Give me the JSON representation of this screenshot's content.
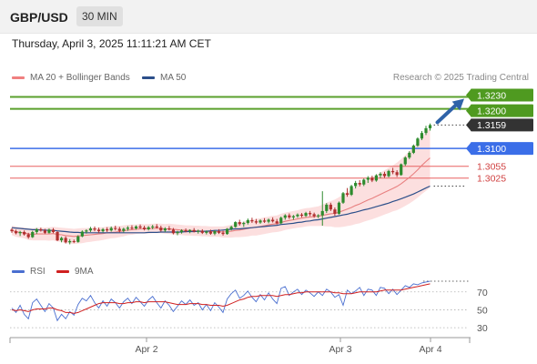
{
  "header": {
    "symbol": "GBP/USD",
    "timeframe": "30 MIN"
  },
  "datetime": "Thursday, April 3, 2025 11:11:21 AM CET",
  "legend": [
    {
      "label": "MA 20 + Bollinger Bands",
      "color": "#f08080"
    },
    {
      "label": "MA 50",
      "color": "#2c4f8a"
    }
  ],
  "research_credit": "Research © 2025 Trading Central",
  "colors": {
    "up": "#2e8b2e",
    "down": "#b03030",
    "ma50": "#2c4f8a",
    "ma20": "#e88080",
    "band": "#fcd9d9",
    "resistance": "#5aa02c",
    "support": "#3b6ee8",
    "supportRed": "#e86060",
    "arrow": "#2f63a8"
  },
  "chart_data": {
    "type": "candlestick",
    "ylim": [
      1.282,
      1.3245
    ],
    "levels": [
      {
        "value": 1.323,
        "label": "1.3230",
        "kind": "resistance"
      },
      {
        "value": 1.32,
        "label": "1.3200",
        "kind": "resistance"
      },
      {
        "value": 1.3159,
        "label": "1.3159",
        "kind": "last"
      },
      {
        "value": 1.31,
        "label": "1.3100",
        "kind": "pivot"
      },
      {
        "value": 1.3055,
        "label": "1.3055",
        "kind": "support"
      },
      {
        "value": 1.3025,
        "label": "1.3025",
        "kind": "support"
      }
    ],
    "x_labels": [
      "Apr 2",
      "Apr 3",
      "Apr 4"
    ],
    "candles": [
      [
        1.2895,
        1.2899,
        1.2887,
        1.2891
      ],
      [
        1.2891,
        1.2895,
        1.2883,
        1.2886
      ],
      [
        1.2886,
        1.2892,
        1.2879,
        1.2889
      ],
      [
        1.2889,
        1.2893,
        1.288,
        1.2883
      ],
      [
        1.2883,
        1.2887,
        1.2872,
        1.2876
      ],
      [
        1.2876,
        1.2892,
        1.2874,
        1.2889
      ],
      [
        1.2889,
        1.2899,
        1.2884,
        1.2896
      ],
      [
        1.2896,
        1.29,
        1.289,
        1.2893
      ],
      [
        1.2893,
        1.2897,
        1.2884,
        1.2887
      ],
      [
        1.2887,
        1.2898,
        1.2885,
        1.2895
      ],
      [
        1.2895,
        1.2899,
        1.2886,
        1.2889
      ],
      [
        1.2889,
        1.2891,
        1.2866,
        1.2868
      ],
      [
        1.2868,
        1.2877,
        1.2863,
        1.2874
      ],
      [
        1.2874,
        1.2878,
        1.286,
        1.2863
      ],
      [
        1.2863,
        1.2871,
        1.2858,
        1.2866
      ],
      [
        1.2866,
        1.287,
        1.2861,
        1.2864
      ],
      [
        1.2864,
        1.2881,
        1.2862,
        1.2878
      ],
      [
        1.2878,
        1.2893,
        1.2876,
        1.289
      ],
      [
        1.289,
        1.2896,
        1.2885,
        1.2893
      ],
      [
        1.2893,
        1.2902,
        1.2889,
        1.2898
      ],
      [
        1.2898,
        1.2903,
        1.2891,
        1.2895
      ],
      [
        1.2895,
        1.29,
        1.2887,
        1.2891
      ],
      [
        1.2891,
        1.2899,
        1.2888,
        1.2896
      ],
      [
        1.2896,
        1.2901,
        1.2889,
        1.2893
      ],
      [
        1.2893,
        1.2903,
        1.289,
        1.2899
      ],
      [
        1.2899,
        1.2905,
        1.2893,
        1.2897
      ],
      [
        1.2897,
        1.2902,
        1.2888,
        1.2892
      ],
      [
        1.2892,
        1.29,
        1.2888,
        1.2897
      ],
      [
        1.2897,
        1.2904,
        1.2892,
        1.29
      ],
      [
        1.29,
        1.2906,
        1.2895,
        1.2898
      ],
      [
        1.2898,
        1.2906,
        1.2895,
        1.2903
      ],
      [
        1.2903,
        1.2908,
        1.2897,
        1.29
      ],
      [
        1.29,
        1.2905,
        1.2893,
        1.2896
      ],
      [
        1.2896,
        1.2904,
        1.2893,
        1.2901
      ],
      [
        1.2901,
        1.2907,
        1.2896,
        1.2903
      ],
      [
        1.2903,
        1.2909,
        1.2898,
        1.29
      ],
      [
        1.29,
        1.2905,
        1.289,
        1.2893
      ],
      [
        1.2893,
        1.2901,
        1.2889,
        1.2898
      ],
      [
        1.2898,
        1.2904,
        1.2893,
        1.2895
      ],
      [
        1.2895,
        1.2899,
        1.2883,
        1.2886
      ],
      [
        1.2886,
        1.2892,
        1.2881,
        1.2889
      ],
      [
        1.2889,
        1.2896,
        1.2885,
        1.2893
      ],
      [
        1.2893,
        1.2898,
        1.2888,
        1.2891
      ],
      [
        1.2891,
        1.2896,
        1.2886,
        1.2894
      ],
      [
        1.2894,
        1.2899,
        1.2888,
        1.289
      ],
      [
        1.289,
        1.2895,
        1.2885,
        1.2892
      ],
      [
        1.2892,
        1.2896,
        1.2884,
        1.2887
      ],
      [
        1.2887,
        1.2893,
        1.2883,
        1.289
      ],
      [
        1.289,
        1.2895,
        1.2882,
        1.2885
      ],
      [
        1.2885,
        1.2893,
        1.2881,
        1.2891
      ],
      [
        1.2891,
        1.2896,
        1.2884,
        1.2887
      ],
      [
        1.2887,
        1.2892,
        1.288,
        1.2884
      ],
      [
        1.2884,
        1.2899,
        1.2882,
        1.2897
      ],
      [
        1.2897,
        1.2905,
        1.2893,
        1.2902
      ],
      [
        1.2902,
        1.2916,
        1.29,
        1.2914
      ],
      [
        1.2914,
        1.292,
        1.2905,
        1.2909
      ],
      [
        1.2909,
        1.2915,
        1.2902,
        1.2912
      ],
      [
        1.2912,
        1.2923,
        1.2908,
        1.2919
      ],
      [
        1.2919,
        1.2925,
        1.2912,
        1.2916
      ],
      [
        1.2916,
        1.2922,
        1.2909,
        1.2913
      ],
      [
        1.2913,
        1.2921,
        1.291,
        1.2918
      ],
      [
        1.2918,
        1.2924,
        1.2912,
        1.2915
      ],
      [
        1.2915,
        1.2923,
        1.2911,
        1.292
      ],
      [
        1.292,
        1.2926,
        1.2913,
        1.2916
      ],
      [
        1.2916,
        1.2922,
        1.2908,
        1.2911
      ],
      [
        1.2911,
        1.2928,
        1.2909,
        1.2925
      ],
      [
        1.2925,
        1.2934,
        1.292,
        1.2931
      ],
      [
        1.2931,
        1.2936,
        1.2922,
        1.2926
      ],
      [
        1.2926,
        1.2932,
        1.292,
        1.2929
      ],
      [
        1.2929,
        1.2936,
        1.2925,
        1.2933
      ],
      [
        1.2933,
        1.2937,
        1.2926,
        1.293
      ],
      [
        1.293,
        1.294,
        1.2927,
        1.2937
      ],
      [
        1.2937,
        1.2942,
        1.2929,
        1.2934
      ],
      [
        1.2934,
        1.2938,
        1.2925,
        1.2929
      ],
      [
        1.2929,
        1.2934,
        1.2924,
        1.2931
      ],
      [
        1.2931,
        1.2992,
        1.2905,
        1.2942
      ],
      [
        1.2942,
        1.2962,
        1.2937,
        1.2958
      ],
      [
        1.2958,
        1.2963,
        1.2942,
        1.2946
      ],
      [
        1.2946,
        1.2951,
        1.293,
        1.2935
      ],
      [
        1.2935,
        1.2966,
        1.2933,
        1.2963
      ],
      [
        1.2963,
        1.299,
        1.296,
        1.2987
      ],
      [
        1.2987,
        1.3,
        1.2978,
        1.2983
      ],
      [
        1.2983,
        1.3008,
        1.298,
        1.3005
      ],
      [
        1.3005,
        1.3018,
        1.2999,
        1.3013
      ],
      [
        1.3013,
        1.302,
        1.3004,
        1.3009
      ],
      [
        1.3009,
        1.3024,
        1.3005,
        1.3021
      ],
      [
        1.3021,
        1.303,
        1.3013,
        1.3026
      ],
      [
        1.3026,
        1.3031,
        1.3015,
        1.3019
      ],
      [
        1.3019,
        1.3035,
        1.3016,
        1.3032
      ],
      [
        1.3032,
        1.304,
        1.3025,
        1.3036
      ],
      [
        1.3036,
        1.3041,
        1.3026,
        1.303
      ],
      [
        1.303,
        1.3046,
        1.3027,
        1.3043
      ],
      [
        1.3043,
        1.3051,
        1.3035,
        1.304
      ],
      [
        1.304,
        1.3045,
        1.3028,
        1.3033
      ],
      [
        1.3033,
        1.3062,
        1.3031,
        1.306
      ],
      [
        1.306,
        1.308,
        1.3056,
        1.3077
      ],
      [
        1.3077,
        1.3093,
        1.3073,
        1.3089
      ],
      [
        1.3089,
        1.311,
        1.3086,
        1.3107
      ],
      [
        1.3107,
        1.3128,
        1.3104,
        1.3125
      ],
      [
        1.3125,
        1.3144,
        1.3121,
        1.3139
      ],
      [
        1.3139,
        1.3157,
        1.3134,
        1.3151
      ],
      [
        1.3151,
        1.3163,
        1.3145,
        1.3159
      ]
    ],
    "ma20": [
      1.2893,
      1.289,
      1.2888,
      1.2887,
      1.2884,
      1.2883,
      1.2884,
      1.2884,
      1.2884,
      1.2884,
      1.2885,
      1.2883,
      1.2882,
      1.288,
      1.2879,
      1.2878,
      1.2879,
      1.288,
      1.2881,
      1.2882,
      1.2883,
      1.2884,
      1.2885,
      1.2887,
      1.2888,
      1.2889,
      1.289,
      1.2892,
      1.2894,
      1.2895,
      1.2896,
      1.2897,
      1.2897,
      1.2897,
      1.2898,
      1.2898,
      1.2898,
      1.2897,
      1.2897,
      1.2896,
      1.2895,
      1.2894,
      1.2893,
      1.2893,
      1.2892,
      1.2892,
      1.2891,
      1.2891,
      1.289,
      1.289,
      1.289,
      1.2889,
      1.289,
      1.2891,
      1.2893,
      1.2894,
      1.2896,
      1.2898,
      1.29,
      1.2901,
      1.2903,
      1.2905,
      1.2907,
      1.2909,
      1.291,
      1.2913,
      1.2916,
      1.2918,
      1.292,
      1.2922,
      1.2924,
      1.2926,
      1.2927,
      1.2928,
      1.2929,
      1.2931,
      1.2933,
      1.2935,
      1.2936,
      1.2939,
      1.2943,
      1.2947,
      1.2951,
      1.2956,
      1.296,
      1.2965,
      1.297,
      1.2974,
      1.2979,
      1.2984,
      1.2989,
      1.2994,
      1.2999,
      1.3004,
      1.3011,
      1.3019,
      1.3027,
      1.3036,
      1.3046,
      1.3057,
      1.3067,
      1.3076
    ],
    "ma50": [
      1.29,
      1.2899,
      1.2898,
      1.2897,
      1.2896,
      1.2895,
      1.2895,
      1.2894,
      1.2894,
      1.2893,
      1.2893,
      1.2892,
      1.2891,
      1.289,
      1.2889,
      1.2888,
      1.2888,
      1.2887,
      1.2887,
      1.2887,
      1.2887,
      1.2887,
      1.2887,
      1.2887,
      1.2887,
      1.2887,
      1.2887,
      1.2887,
      1.2887,
      1.2887,
      1.2887,
      1.2887,
      1.2887,
      1.2888,
      1.2888,
      1.2888,
      1.2889,
      1.2889,
      1.2889,
      1.2889,
      1.2889,
      1.2889,
      1.289,
      1.289,
      1.289,
      1.2891,
      1.2891,
      1.2891,
      1.2892,
      1.2893,
      1.2893,
      1.2894,
      1.2895,
      1.2896,
      1.2897,
      1.2897,
      1.2898,
      1.2899,
      1.29,
      1.2901,
      1.2902,
      1.2903,
      1.2904,
      1.2905,
      1.2906,
      1.2908,
      1.2909,
      1.291,
      1.2911,
      1.2913,
      1.2914,
      1.2916,
      1.2917,
      1.2919,
      1.292,
      1.2922,
      1.2924,
      1.2926,
      1.2928,
      1.293,
      1.2932,
      1.2934,
      1.2937,
      1.2939,
      1.2942,
      1.2945,
      1.2947,
      1.295,
      1.2953,
      1.2956,
      1.2959,
      1.2962,
      1.2966,
      1.2969,
      1.2973,
      1.2977,
      1.2981,
      1.2985,
      1.299,
      1.2995,
      1.3,
      1.3005
    ],
    "bb_width": [
      0.0012,
      0.0013,
      0.0013,
      0.0014,
      0.0015,
      0.0015,
      0.0016,
      0.0016,
      0.0016,
      0.0017,
      0.0017,
      0.0018,
      0.0018,
      0.0019,
      0.0019,
      0.0019,
      0.0019,
      0.0019,
      0.0018,
      0.0018,
      0.0017,
      0.0017,
      0.0016,
      0.0016,
      0.0015,
      0.0015,
      0.0014,
      0.0014,
      0.0013,
      0.0013,
      0.0012,
      0.0012,
      0.0012,
      0.0012,
      0.0012,
      0.0012,
      0.0012,
      0.0012,
      0.0013,
      0.0013,
      0.0013,
      0.0013,
      0.0013,
      0.0013,
      0.0013,
      0.0013,
      0.0013,
      0.0013,
      0.0013,
      0.0013,
      0.0013,
      0.0014,
      0.0015,
      0.0016,
      0.0017,
      0.0018,
      0.0019,
      0.002,
      0.002,
      0.0021,
      0.0021,
      0.0021,
      0.0021,
      0.0021,
      0.0021,
      0.0022,
      0.0022,
      0.0022,
      0.0022,
      0.0022,
      0.0023,
      0.0023,
      0.0023,
      0.0024,
      0.0025,
      0.0027,
      0.003,
      0.0032,
      0.0035,
      0.0038,
      0.0041,
      0.0043,
      0.0045,
      0.0047,
      0.0049,
      0.005,
      0.0052,
      0.0053,
      0.0054,
      0.0055,
      0.0056,
      0.0057,
      0.0058,
      0.006,
      0.0062,
      0.0064,
      0.0066,
      0.0068,
      0.007,
      0.0072,
      0.0074,
      0.0075
    ],
    "rsi": {
      "legend": [
        {
          "label": "RSI",
          "color": "#4a6fd0"
        },
        {
          "label": "9MA",
          "color": "#d02020"
        }
      ],
      "ticks": [
        70,
        50,
        30
      ],
      "ylim": [
        20,
        85
      ],
      "rsi": [
        52,
        47,
        55,
        45,
        40,
        58,
        62,
        55,
        48,
        57,
        52,
        38,
        45,
        40,
        48,
        44,
        56,
        63,
        60,
        66,
        58,
        52,
        60,
        54,
        62,
        58,
        52,
        59,
        63,
        57,
        64,
        59,
        54,
        61,
        65,
        58,
        52,
        60,
        55,
        48,
        54,
        60,
        56,
        61,
        55,
        58,
        50,
        56,
        49,
        58,
        53,
        47,
        62,
        68,
        72,
        63,
        66,
        71,
        64,
        59,
        67,
        61,
        69,
        62,
        57,
        74,
        76,
        66,
        70,
        73,
        67,
        72,
        69,
        65,
        70,
        66,
        73,
        70,
        64,
        67,
        55,
        72,
        68,
        71,
        75,
        66,
        73,
        72,
        66,
        75,
        74,
        68,
        73,
        67,
        72,
        77,
        75,
        79,
        78,
        80,
        81,
        82
      ],
      "ma9": [
        50,
        49,
        50,
        49,
        48,
        50,
        51,
        51,
        51,
        52,
        52,
        50,
        49,
        47,
        47,
        46,
        47,
        49,
        51,
        53,
        55,
        57,
        58,
        58,
        58,
        58,
        57,
        57,
        58,
        58,
        59,
        59,
        58,
        59,
        59,
        59,
        59,
        59,
        58,
        57,
        56,
        56,
        56,
        57,
        57,
        57,
        56,
        56,
        55,
        55,
        55,
        54,
        55,
        57,
        59,
        61,
        62,
        64,
        65,
        65,
        66,
        66,
        66,
        66,
        65,
        66,
        67,
        67,
        68,
        69,
        69,
        70,
        70,
        70,
        70,
        70,
        70,
        70,
        69,
        69,
        68,
        68,
        68,
        69,
        70,
        70,
        70,
        70,
        70,
        71,
        72,
        72,
        72,
        72,
        72,
        73,
        74,
        75,
        76,
        77,
        78,
        79
      ]
    }
  }
}
